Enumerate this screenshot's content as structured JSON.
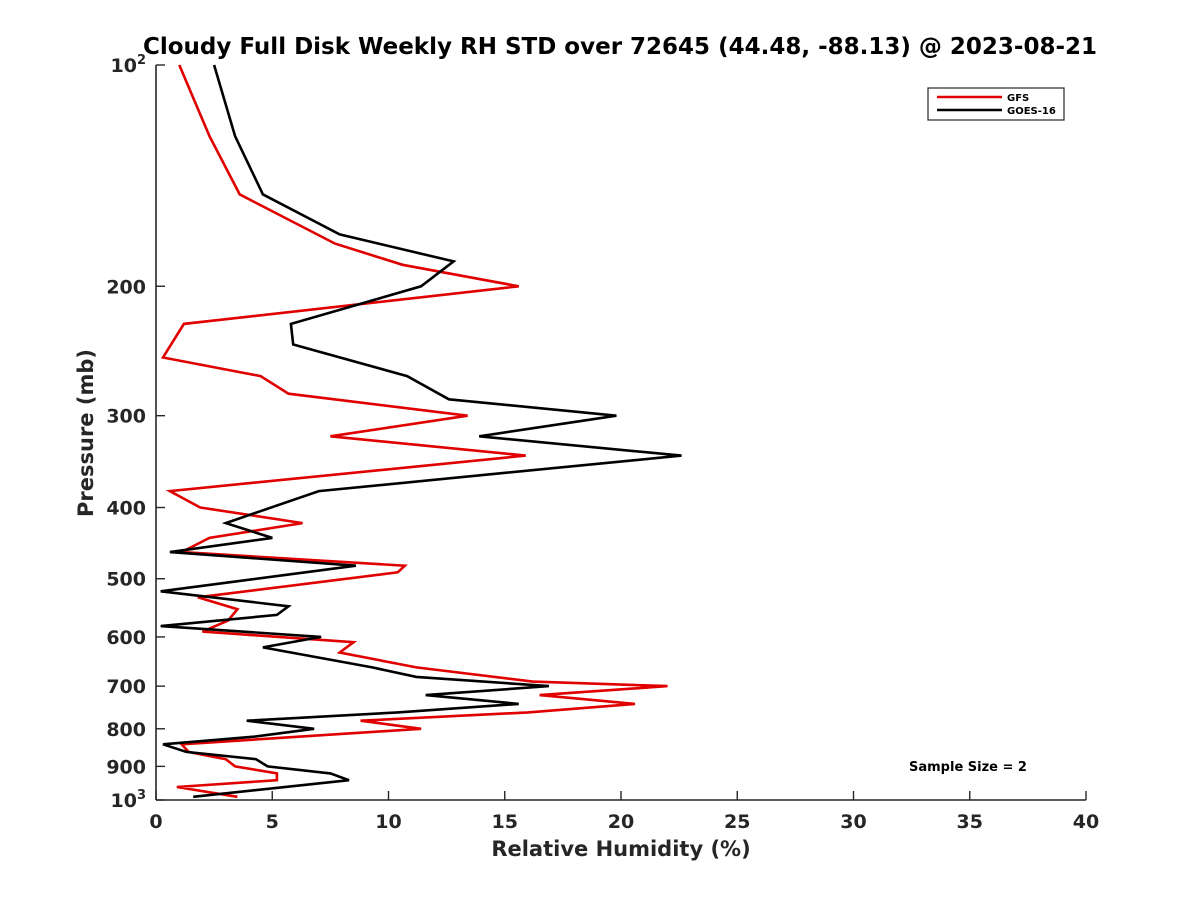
{
  "chart_data": {
    "type": "line",
    "title": "Cloudy Full Disk Weekly RH STD over 72645 (44.48, -88.13) @ 2023-08-21",
    "xlabel": "Relative Humidity (%)",
    "ylabel": "Pressure (mb)",
    "xlim": [
      0,
      40
    ],
    "ylim": [
      100,
      1000
    ],
    "y_scale": "log",
    "y_reversed": true,
    "xticks": [
      "0",
      "5",
      "10",
      "15",
      "20",
      "25",
      "30",
      "35",
      "40"
    ],
    "yticks": [
      {
        "value": 100,
        "label": "10",
        "sup": "2"
      },
      {
        "value": 200,
        "label": "200",
        "sup": ""
      },
      {
        "value": 300,
        "label": "300",
        "sup": ""
      },
      {
        "value": 400,
        "label": "400",
        "sup": ""
      },
      {
        "value": 500,
        "label": "500",
        "sup": ""
      },
      {
        "value": 600,
        "label": "600",
        "sup": ""
      },
      {
        "value": 700,
        "label": "700",
        "sup": ""
      },
      {
        "value": 800,
        "label": "800",
        "sup": ""
      },
      {
        "value": 900,
        "label": "900",
        "sup": ""
      },
      {
        "value": 1000,
        "label": "10",
        "sup": "3"
      }
    ],
    "grid": false,
    "legend_position": "top-right",
    "annotation": "Sample Size = 2",
    "series": [
      {
        "name": "GFS",
        "color": "#e00000",
        "points": [
          [
            1.0,
            100
          ],
          [
            2.3,
            125
          ],
          [
            3.6,
            150
          ],
          [
            7.7,
            175
          ],
          [
            10.6,
            187
          ],
          [
            15.6,
            200
          ],
          [
            1.2,
            225
          ],
          [
            0.3,
            250
          ],
          [
            4.5,
            265
          ],
          [
            5.7,
            280
          ],
          [
            13.4,
            300
          ],
          [
            7.5,
            320
          ],
          [
            15.9,
            340
          ],
          [
            0.6,
            380
          ],
          [
            1.9,
            400
          ],
          [
            6.3,
            420
          ],
          [
            2.3,
            440
          ],
          [
            1.1,
            460
          ],
          [
            10.7,
            480
          ],
          [
            10.4,
            490
          ],
          [
            1.8,
            530
          ],
          [
            3.5,
            550
          ],
          [
            3.1,
            570
          ],
          [
            2.0,
            590
          ],
          [
            8.5,
            610
          ],
          [
            7.9,
            630
          ],
          [
            11.2,
            660
          ],
          [
            16.2,
            690
          ],
          [
            22.0,
            700
          ],
          [
            16.5,
            720
          ],
          [
            20.6,
            740
          ],
          [
            16.0,
            760
          ],
          [
            8.8,
            780
          ],
          [
            11.4,
            800
          ],
          [
            1.1,
            840
          ],
          [
            1.4,
            860
          ],
          [
            3.0,
            880
          ],
          [
            3.4,
            900
          ],
          [
            5.2,
            920
          ],
          [
            5.2,
            940
          ],
          [
            0.9,
            960
          ],
          [
            3.5,
            990
          ]
        ]
      },
      {
        "name": "GOES-16",
        "color": "#000000",
        "points": [
          [
            2.5,
            100
          ],
          [
            3.4,
            125
          ],
          [
            4.6,
            150
          ],
          [
            7.9,
            170
          ],
          [
            12.8,
            185
          ],
          [
            11.4,
            200
          ],
          [
            5.8,
            225
          ],
          [
            5.9,
            240
          ],
          [
            10.8,
            265
          ],
          [
            12.6,
            285
          ],
          [
            19.8,
            300
          ],
          [
            13.9,
            320
          ],
          [
            22.6,
            340
          ],
          [
            7.0,
            380
          ],
          [
            3.0,
            420
          ],
          [
            5.0,
            440
          ],
          [
            0.6,
            460
          ],
          [
            8.6,
            480
          ],
          [
            0.2,
            520
          ],
          [
            5.7,
            545
          ],
          [
            5.2,
            560
          ],
          [
            0.2,
            580
          ],
          [
            7.1,
            600
          ],
          [
            4.6,
            620
          ],
          [
            9.3,
            660
          ],
          [
            11.2,
            680
          ],
          [
            16.9,
            700
          ],
          [
            11.6,
            720
          ],
          [
            15.6,
            740
          ],
          [
            10.4,
            760
          ],
          [
            3.9,
            780
          ],
          [
            6.8,
            800
          ],
          [
            4.2,
            820
          ],
          [
            0.3,
            840
          ],
          [
            1.3,
            860
          ],
          [
            4.3,
            880
          ],
          [
            4.8,
            900
          ],
          [
            7.5,
            920
          ],
          [
            8.3,
            940
          ],
          [
            1.6,
            990
          ]
        ]
      }
    ]
  }
}
